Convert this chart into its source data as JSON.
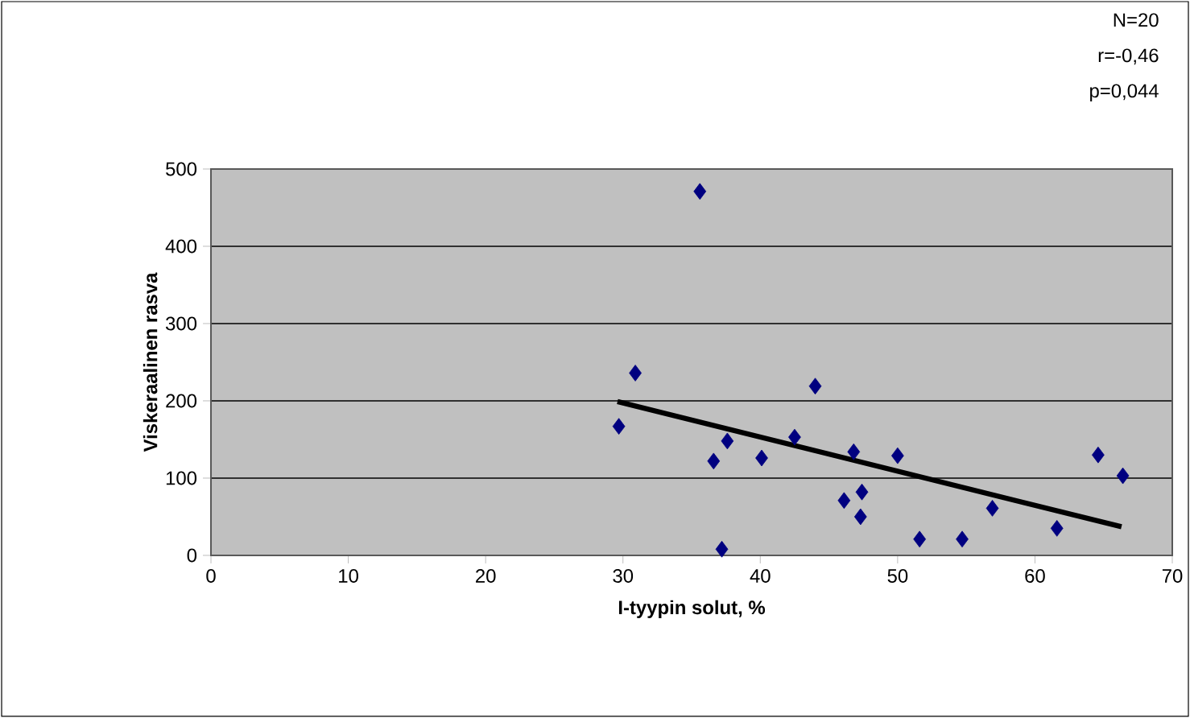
{
  "chart_data": {
    "type": "scatter",
    "xlabel": "I-tyypin solut, %",
    "ylabel": "Viskeraalinen rasva",
    "annotations": [
      "N=20",
      "r=-0,46",
      "p=0,044"
    ],
    "xlim": [
      0,
      70
    ],
    "ylim": [
      0,
      500
    ],
    "xticks": [
      0,
      10,
      20,
      30,
      40,
      50,
      60,
      70
    ],
    "yticks": [
      0,
      100,
      200,
      300,
      400,
      500
    ],
    "grid": "y",
    "marker": "diamond",
    "series": [
      {
        "color": "#000080",
        "x": [
          29.7,
          30.9,
          35.6,
          36.6,
          37.2,
          37.6,
          40.1,
          42.5,
          44.0,
          46.1,
          46.8,
          47.3,
          47.4,
          50.0,
          51.6,
          54.7,
          56.9,
          61.6,
          64.6,
          66.4
        ],
        "values": [
          167,
          236,
          471,
          122,
          8,
          148,
          126,
          153,
          219,
          71,
          134,
          50,
          82,
          129,
          21,
          21,
          61,
          35,
          130,
          103
        ]
      },
      {
        "type": "line",
        "color": "#000000",
        "marker": "none",
        "x": [
          29.6,
          66.3
        ],
        "values": [
          199,
          37
        ]
      }
    ]
  }
}
